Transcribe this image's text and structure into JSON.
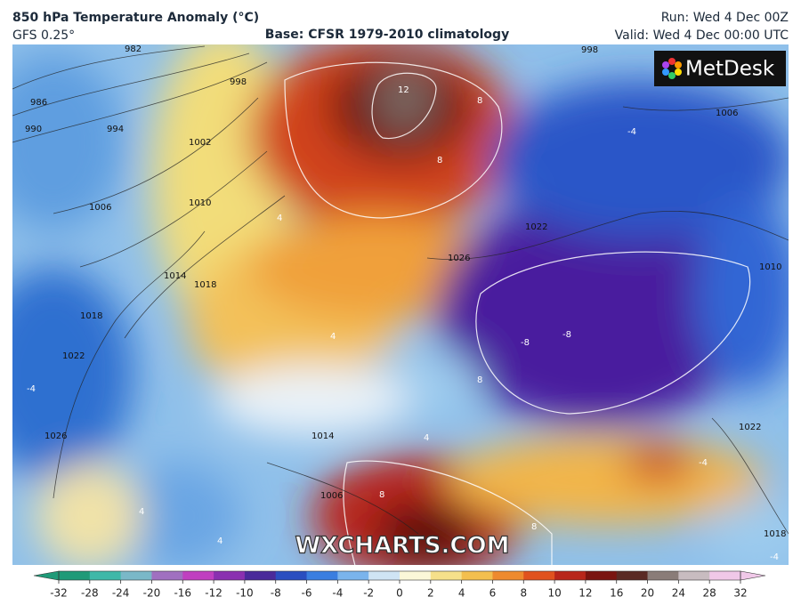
{
  "header": {
    "title": "850 hPa Temperature Anomaly (°C)",
    "model": "GFS 0.25°",
    "base": "Base: CFSR 1979-2010 climatology",
    "run": "Run: Wed 4 Dec 00Z",
    "valid": "Valid: Wed 4 Dec 00:00 UTC"
  },
  "logo": "MetDesk",
  "watermark": "WXCHARTS.COM",
  "map": {
    "pressure_labels": [
      "982",
      "986",
      "990",
      "994",
      "998",
      "1002",
      "1006",
      "1010",
      "1014",
      "1018",
      "1018",
      "1022",
      "1026",
      "1006",
      "1022",
      "1026",
      "1010",
      "1022",
      "1018",
      "1006",
      "998",
      "1014"
    ],
    "anomaly_labels": [
      "12",
      "8",
      "8",
      "4",
      "-4",
      "-8",
      "-8",
      "8",
      "4",
      "-4",
      "-4",
      "8",
      "8",
      "-4",
      "4",
      "4",
      "4"
    ]
  },
  "colorbar": {
    "ticks": [
      -32,
      -28,
      -24,
      -20,
      -16,
      -12,
      -10,
      -8,
      -6,
      -4,
      -2,
      0,
      2,
      4,
      6,
      8,
      10,
      12,
      16,
      20,
      24,
      28,
      32
    ],
    "colors": [
      "#1f9a78",
      "#3fb8a8",
      "#7ab8c8",
      "#a070c0",
      "#c040c0",
      "#8a30b0",
      "#4a2a9a",
      "#2a4ec0",
      "#3a7ee0",
      "#7ab4ec",
      "#cfe4f4",
      "#fbf7d8",
      "#f6e08a",
      "#f3bf4e",
      "#ee8a2e",
      "#e0521e",
      "#b8261a",
      "#7a1410",
      "#5a2a24",
      "#8a7c78",
      "#c8bcc0",
      "#f0c8e8"
    ]
  }
}
